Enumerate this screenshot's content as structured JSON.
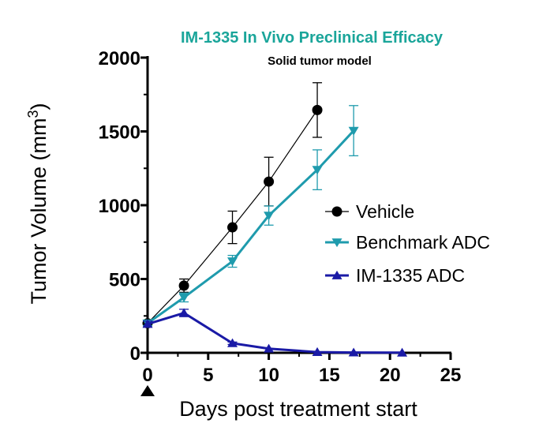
{
  "chart_data": {
    "type": "line",
    "title": "IM-1335 In Vivo Preclinical Efficacy",
    "subtitle": "Solid tumor model",
    "xlabel": "Days post treatment start",
    "ylabel_main": "Tumor Volume (mm",
    "ylabel_sup": "3",
    "ylabel_close": ")",
    "xlim": [
      0,
      25
    ],
    "ylim": [
      0,
      2000
    ],
    "xticks": [
      "0",
      "5",
      "10",
      "15",
      "20",
      "25"
    ],
    "yticks": [
      "0",
      "500",
      "1000",
      "1500",
      "2000"
    ],
    "series": [
      {
        "name": "Vehicle",
        "color": "#000000",
        "marker": "circle",
        "x": [
          0,
          3,
          7,
          10,
          14
        ],
        "y": [
          200,
          455,
          850,
          1160,
          1645
        ],
        "err": [
          15,
          45,
          110,
          165,
          185
        ]
      },
      {
        "name": "Benchmark ADC",
        "color": "#1f9bad",
        "marker": "triangle-down",
        "x": [
          0,
          3,
          7,
          10,
          14,
          17
        ],
        "y": [
          200,
          375,
          620,
          930,
          1240,
          1505
        ],
        "err": [
          15,
          30,
          40,
          65,
          135,
          170
        ]
      },
      {
        "name": "IM-1335 ADC",
        "color": "#1a1aa6",
        "marker": "triangle-up",
        "x": [
          0,
          3,
          7,
          10,
          14,
          17,
          21
        ],
        "y": [
          195,
          270,
          65,
          28,
          5,
          2,
          1
        ],
        "err": [
          20,
          25,
          8,
          5,
          2,
          1,
          1
        ]
      }
    ],
    "dosing_marker_day": 0
  }
}
